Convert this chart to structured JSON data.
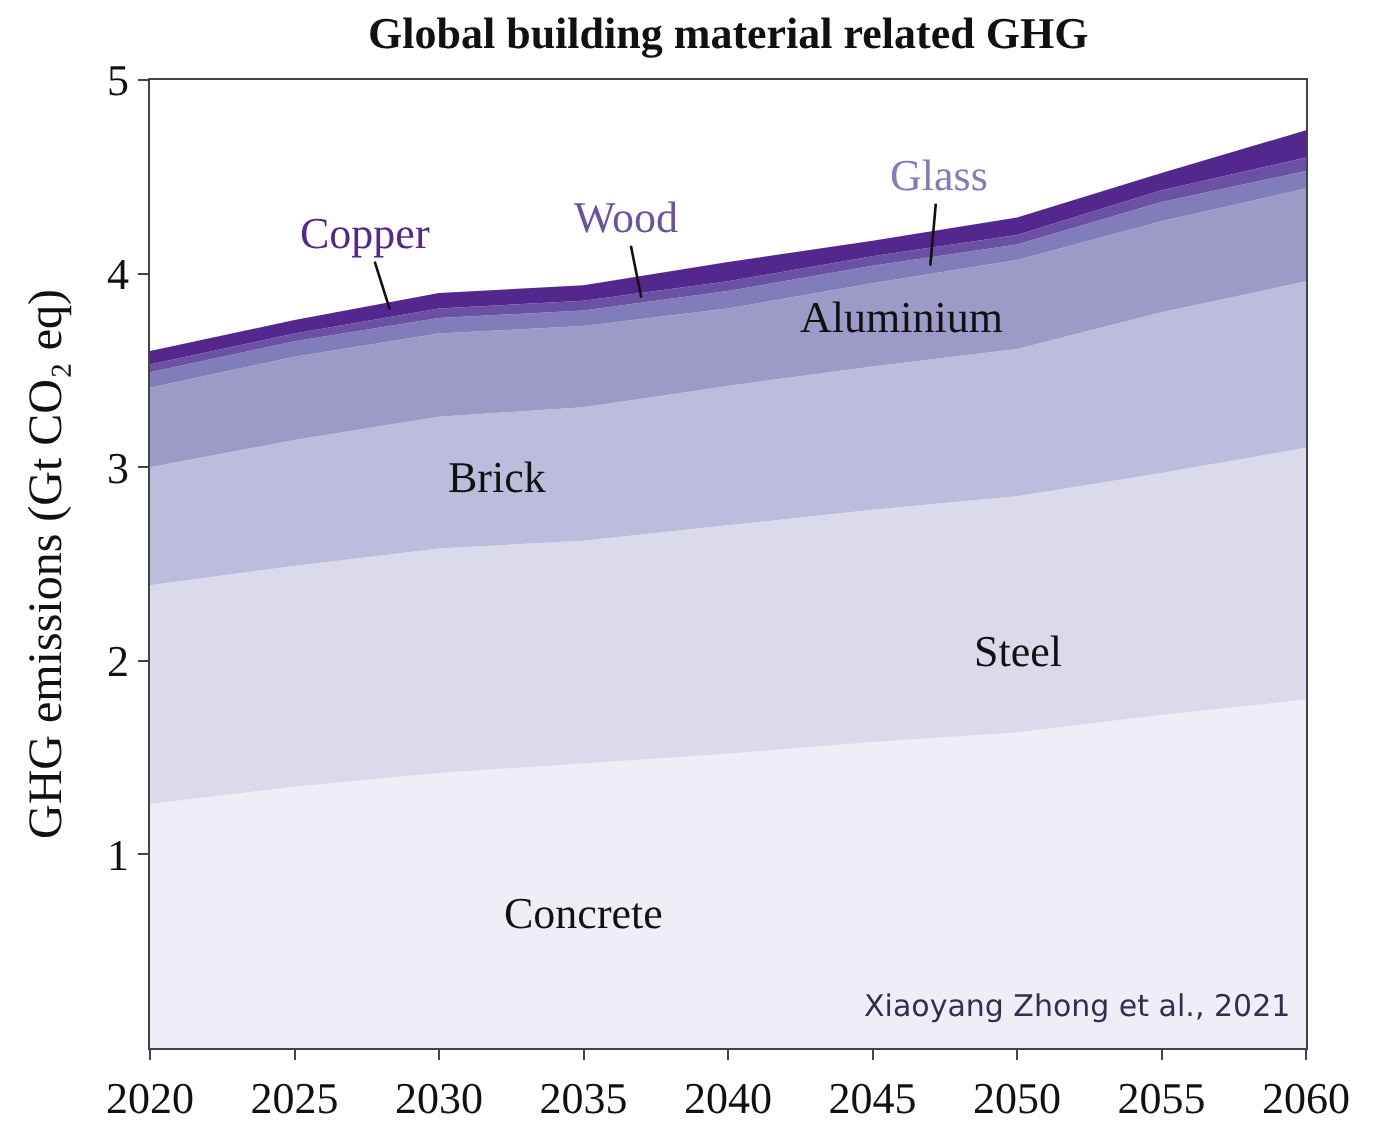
{
  "chart_data": {
    "type": "area",
    "stacked": true,
    "title": "Global building material related GHG",
    "ylabel": "GHG emissions (Gt CO₂ eq)",
    "x": [
      2020,
      2025,
      2030,
      2035,
      2040,
      2045,
      2050,
      2055,
      2060
    ],
    "xlim": [
      2020,
      2060
    ],
    "xticks": [
      2020,
      2025,
      2030,
      2035,
      2040,
      2045,
      2050,
      2055,
      2060
    ],
    "ylim": [
      0,
      5
    ],
    "yticks": [
      1,
      2,
      3,
      4,
      5
    ],
    "legend": false,
    "series": [
      {
        "name": "Concrete",
        "color": "#efedf5",
        "values": [
          1.26,
          1.35,
          1.42,
          1.47,
          1.52,
          1.58,
          1.63,
          1.72,
          1.8
        ]
      },
      {
        "name": "Steel",
        "color": "#dadaeb",
        "values": [
          1.13,
          1.14,
          1.16,
          1.15,
          1.18,
          1.2,
          1.22,
          1.25,
          1.3
        ]
      },
      {
        "name": "Brick",
        "color": "#bcbddc",
        "values": [
          0.61,
          0.65,
          0.68,
          0.69,
          0.72,
          0.74,
          0.76,
          0.83,
          0.86
        ]
      },
      {
        "name": "Aluminium",
        "color": "#9e9ac8",
        "values": [
          0.41,
          0.43,
          0.43,
          0.42,
          0.4,
          0.43,
          0.46,
          0.47,
          0.48
        ]
      },
      {
        "name": "Glass",
        "color": "#807dba",
        "values": [
          0.08,
          0.08,
          0.08,
          0.08,
          0.09,
          0.09,
          0.08,
          0.1,
          0.09
        ]
      },
      {
        "name": "Wood",
        "color": "#6a51a3",
        "values": [
          0.04,
          0.04,
          0.05,
          0.05,
          0.05,
          0.05,
          0.05,
          0.06,
          0.07
        ]
      },
      {
        "name": "Copper",
        "color": "#54278f",
        "values": [
          0.07,
          0.07,
          0.08,
          0.08,
          0.1,
          0.08,
          0.09,
          0.09,
          0.14
        ]
      }
    ],
    "annotations": [
      "Xiaoyang Zhong et al., 2021"
    ]
  }
}
